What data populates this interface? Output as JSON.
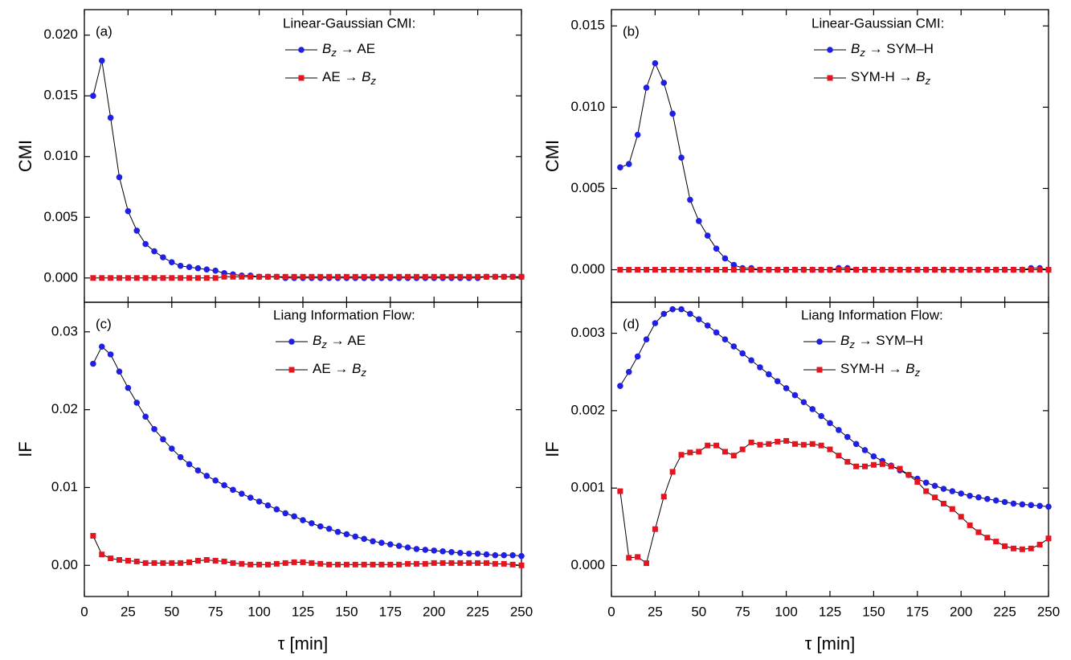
{
  "chart_data": [
    {
      "type": "line",
      "panel_label": "(a)",
      "ylabel": "CMI",
      "legend_title": "Linear-Gaussian CMI:",
      "x": [
        5,
        10,
        15,
        20,
        25,
        30,
        35,
        40,
        45,
        50,
        55,
        60,
        65,
        70,
        75,
        80,
        85,
        90,
        95,
        100,
        105,
        110,
        115,
        120,
        125,
        130,
        135,
        140,
        145,
        150,
        155,
        160,
        165,
        170,
        175,
        180,
        185,
        190,
        195,
        200,
        205,
        210,
        215,
        220,
        225,
        230,
        235,
        240,
        245,
        250
      ],
      "series": [
        {
          "name": "Bz → AE",
          "color": "#1f1fe6",
          "marker": "circle",
          "values": [
            0.015,
            0.0179,
            0.0132,
            0.0083,
            0.0055,
            0.0039,
            0.0028,
            0.0022,
            0.0017,
            0.0013,
            0.001,
            0.0009,
            0.0008,
            0.0007,
            0.0006,
            0.0004,
            0.0003,
            0.0002,
            0.0002,
            0.0001,
            0.0001,
            0.0001,
            0,
            0,
            0,
            0,
            0,
            0,
            0,
            0,
            0,
            0,
            0,
            0,
            0,
            0,
            0,
            0,
            0,
            0,
            0,
            0,
            0,
            0,
            0,
            0.0001,
            0.0001,
            0.0001,
            0.0001,
            0.0001
          ]
        },
        {
          "name": "AE → Bz",
          "color": "#e6141e",
          "marker": "square",
          "values": [
            0,
            0,
            0,
            0,
            0,
            0,
            0,
            0,
            0,
            0,
            0,
            0,
            0,
            0,
            0,
            0.0001,
            0.0001,
            0.0001,
            0.0001,
            0.0001,
            0.0001,
            0.0001,
            0.0001,
            0.0001,
            0.0001,
            0.0001,
            0.0001,
            0.0001,
            0.0001,
            0.0001,
            0.0001,
            0.0001,
            0.0001,
            0.0001,
            0.0001,
            0.0001,
            0.0001,
            0.0001,
            0.0001,
            0.0001,
            0.0001,
            0.0001,
            0.0001,
            0.0001,
            0.0001,
            0.0001,
            0.0001,
            0.0001,
            0.0001,
            0.0001
          ]
        }
      ],
      "xlim": [
        0,
        250
      ],
      "xticks": [
        0,
        25,
        50,
        75,
        100,
        125,
        150,
        175,
        200,
        225,
        250
      ],
      "ylim": [
        -0.002,
        0.0221
      ],
      "yticks": [
        {
          "value": 0,
          "label": "0.000"
        },
        {
          "value": 0.005,
          "label": "0.005"
        },
        {
          "value": 0.01,
          "label": "0.010"
        },
        {
          "value": 0.015,
          "label": "0.015"
        },
        {
          "value": 0.02,
          "label": "0.020"
        }
      ]
    },
    {
      "type": "line",
      "panel_label": "(b)",
      "ylabel": "CMI",
      "legend_title": "Linear-Gaussian CMI:",
      "x": [
        5,
        10,
        15,
        20,
        25,
        30,
        35,
        40,
        45,
        50,
        55,
        60,
        65,
        70,
        75,
        80,
        85,
        90,
        95,
        100,
        105,
        110,
        115,
        120,
        125,
        130,
        135,
        140,
        145,
        150,
        155,
        160,
        165,
        170,
        175,
        180,
        185,
        190,
        195,
        200,
        205,
        210,
        215,
        220,
        225,
        230,
        235,
        240,
        245,
        250
      ],
      "series": [
        {
          "name": "Bz → SYM–H",
          "color": "#1f1fe6",
          "marker": "circle",
          "values": [
            0.0063,
            0.0065,
            0.0083,
            0.0112,
            0.0127,
            0.0115,
            0.0096,
            0.0069,
            0.0043,
            0.003,
            0.0021,
            0.0013,
            0.0007,
            0.0003,
            0.0001,
            0.0001,
            0,
            0,
            0,
            0,
            0,
            0,
            0,
            0,
            0,
            0.0001,
            0.0001,
            0,
            0,
            0,
            0,
            0,
            0,
            0,
            0,
            0,
            0,
            0,
            0,
            0,
            0,
            0,
            0,
            0,
            0,
            0,
            0,
            0.0001,
            0.0001,
            0
          ]
        },
        {
          "name": "SYM-H → Bz",
          "color": "#e6141e",
          "marker": "square",
          "values": [
            0,
            0,
            0,
            0,
            0,
            0,
            0,
            0,
            0,
            0,
            0,
            0,
            0,
            0,
            0,
            0,
            0,
            0,
            0,
            0,
            0,
            0,
            0,
            0,
            0,
            0,
            0,
            0,
            0,
            0,
            0,
            0,
            0,
            0,
            0,
            0,
            0,
            0,
            0,
            0,
            0,
            0,
            0,
            0,
            0,
            0,
            0,
            0,
            0,
            0
          ]
        }
      ],
      "xlim": [
        0,
        250
      ],
      "xticks": [
        0,
        25,
        50,
        75,
        100,
        125,
        150,
        175,
        200,
        225,
        250
      ],
      "ylim": [
        -0.002,
        0.016
      ],
      "yticks": [
        {
          "value": 0,
          "label": "0.000"
        },
        {
          "value": 0.005,
          "label": "0.005"
        },
        {
          "value": 0.01,
          "label": "0.010"
        },
        {
          "value": 0.015,
          "label": "0.015"
        }
      ]
    },
    {
      "type": "line",
      "panel_label": "(c)",
      "ylabel": "IF",
      "legend_title": "Liang Information Flow:",
      "xlabel": "τ [min]",
      "x": [
        5,
        10,
        15,
        20,
        25,
        30,
        35,
        40,
        45,
        50,
        55,
        60,
        65,
        70,
        75,
        80,
        85,
        90,
        95,
        100,
        105,
        110,
        115,
        120,
        125,
        130,
        135,
        140,
        145,
        150,
        155,
        160,
        165,
        170,
        175,
        180,
        185,
        190,
        195,
        200,
        205,
        210,
        215,
        220,
        225,
        230,
        235,
        240,
        245,
        250
      ],
      "series": [
        {
          "name": "Bz → AE",
          "color": "#1f1fe6",
          "marker": "circle",
          "values": [
            0.0259,
            0.0281,
            0.0271,
            0.0249,
            0.0228,
            0.0209,
            0.0191,
            0.0175,
            0.0162,
            0.015,
            0.0139,
            0.013,
            0.0122,
            0.0115,
            0.0109,
            0.0103,
            0.0097,
            0.0092,
            0.0087,
            0.0082,
            0.0077,
            0.0072,
            0.0067,
            0.0063,
            0.0058,
            0.0054,
            0.005,
            0.0047,
            0.0043,
            0.004,
            0.0037,
            0.0034,
            0.0031,
            0.0029,
            0.0027,
            0.0025,
            0.0023,
            0.0021,
            0.002,
            0.0019,
            0.0018,
            0.0017,
            0.0016,
            0.0015,
            0.0015,
            0.0014,
            0.0013,
            0.0013,
            0.0013,
            0.0012
          ]
        },
        {
          "name": "AE → Bz",
          "color": "#e6141e",
          "marker": "square",
          "values": [
            0.0038,
            0.0014,
            0.0009,
            0.0007,
            0.0006,
            0.0005,
            0.0003,
            0.0003,
            0.0003,
            0.0003,
            0.0003,
            0.0004,
            0.0006,
            0.0007,
            0.0006,
            0.0005,
            0.0003,
            0.0002,
            0.0001,
            0.0001,
            0.0001,
            0.0002,
            0.0003,
            0.0004,
            0.0004,
            0.0003,
            0.0002,
            0.0001,
            0.0001,
            0.0001,
            0.0001,
            0.0001,
            0.0001,
            0.0001,
            0.0001,
            0.0001,
            0.0002,
            0.0002,
            0.0002,
            0.0003,
            0.0003,
            0.0003,
            0.0003,
            0.0003,
            0.0003,
            0.0003,
            0.0002,
            0.0002,
            0.0001,
            0
          ]
        }
      ],
      "xlim": [
        0,
        250
      ],
      "xticks": [
        0,
        25,
        50,
        75,
        100,
        125,
        150,
        175,
        200,
        225,
        250
      ],
      "ylim": [
        -0.004,
        0.0338
      ],
      "yticks": [
        {
          "value": 0,
          "label": "0.00"
        },
        {
          "value": 0.01,
          "label": "0.01"
        },
        {
          "value": 0.02,
          "label": "0.02"
        },
        {
          "value": 0.03,
          "label": "0.03"
        }
      ]
    },
    {
      "type": "line",
      "panel_label": "(d)",
      "ylabel": "IF",
      "legend_title": "Liang Information Flow:",
      "xlabel": "τ [min]",
      "x": [
        5,
        10,
        15,
        20,
        25,
        30,
        35,
        40,
        45,
        50,
        55,
        60,
        65,
        70,
        75,
        80,
        85,
        90,
        95,
        100,
        105,
        110,
        115,
        120,
        125,
        130,
        135,
        140,
        145,
        150,
        155,
        160,
        165,
        170,
        175,
        180,
        185,
        190,
        195,
        200,
        205,
        210,
        215,
        220,
        225,
        230,
        235,
        240,
        245,
        250
      ],
      "series": [
        {
          "name": "Bz → SYM–H",
          "color": "#1f1fe6",
          "marker": "circle",
          "values": [
            0.00232,
            0.0025,
            0.0027,
            0.00292,
            0.00313,
            0.00325,
            0.00331,
            0.00331,
            0.00325,
            0.00318,
            0.0031,
            0.00301,
            0.00292,
            0.00283,
            0.00274,
            0.00265,
            0.00256,
            0.00247,
            0.00238,
            0.00229,
            0.0022,
            0.00211,
            0.00202,
            0.00193,
            0.00184,
            0.00175,
            0.00166,
            0.00157,
            0.00149,
            0.00141,
            0.00135,
            0.00129,
            0.00123,
            0.00117,
            0.00112,
            0.00107,
            0.00103,
            0.00099,
            0.00096,
            0.00093,
            0.0009,
            0.00088,
            0.00086,
            0.00084,
            0.00082,
            0.0008,
            0.00079,
            0.00078,
            0.00077,
            0.00076
          ]
        },
        {
          "name": "SYM-H → Bz",
          "color": "#e6141e",
          "marker": "square",
          "values": [
            0.00096,
            0.0001,
            0.00011,
            3e-05,
            0.00047,
            0.00089,
            0.00121,
            0.00143,
            0.00146,
            0.00147,
            0.00155,
            0.00155,
            0.00147,
            0.00142,
            0.0015,
            0.00159,
            0.00156,
            0.00157,
            0.0016,
            0.00161,
            0.00157,
            0.00156,
            0.00157,
            0.00155,
            0.0015,
            0.00142,
            0.00134,
            0.00128,
            0.00128,
            0.0013,
            0.00131,
            0.00128,
            0.00125,
            0.00117,
            0.00108,
            0.00096,
            0.00088,
            0.0008,
            0.00073,
            0.00063,
            0.00052,
            0.00043,
            0.00036,
            0.00031,
            0.00025,
            0.00022,
            0.00021,
            0.00022,
            0.00027,
            0.00035
          ]
        }
      ],
      "xlim": [
        0,
        250
      ],
      "xticks": [
        0,
        25,
        50,
        75,
        100,
        125,
        150,
        175,
        200,
        225,
        250
      ],
      "ylim": [
        -0.0004,
        0.0034
      ],
      "yticks": [
        {
          "value": 0,
          "label": "0.000"
        },
        {
          "value": 0.001,
          "label": "0.001"
        },
        {
          "value": 0.002,
          "label": "0.002"
        },
        {
          "value": 0.003,
          "label": "0.003"
        }
      ]
    }
  ]
}
